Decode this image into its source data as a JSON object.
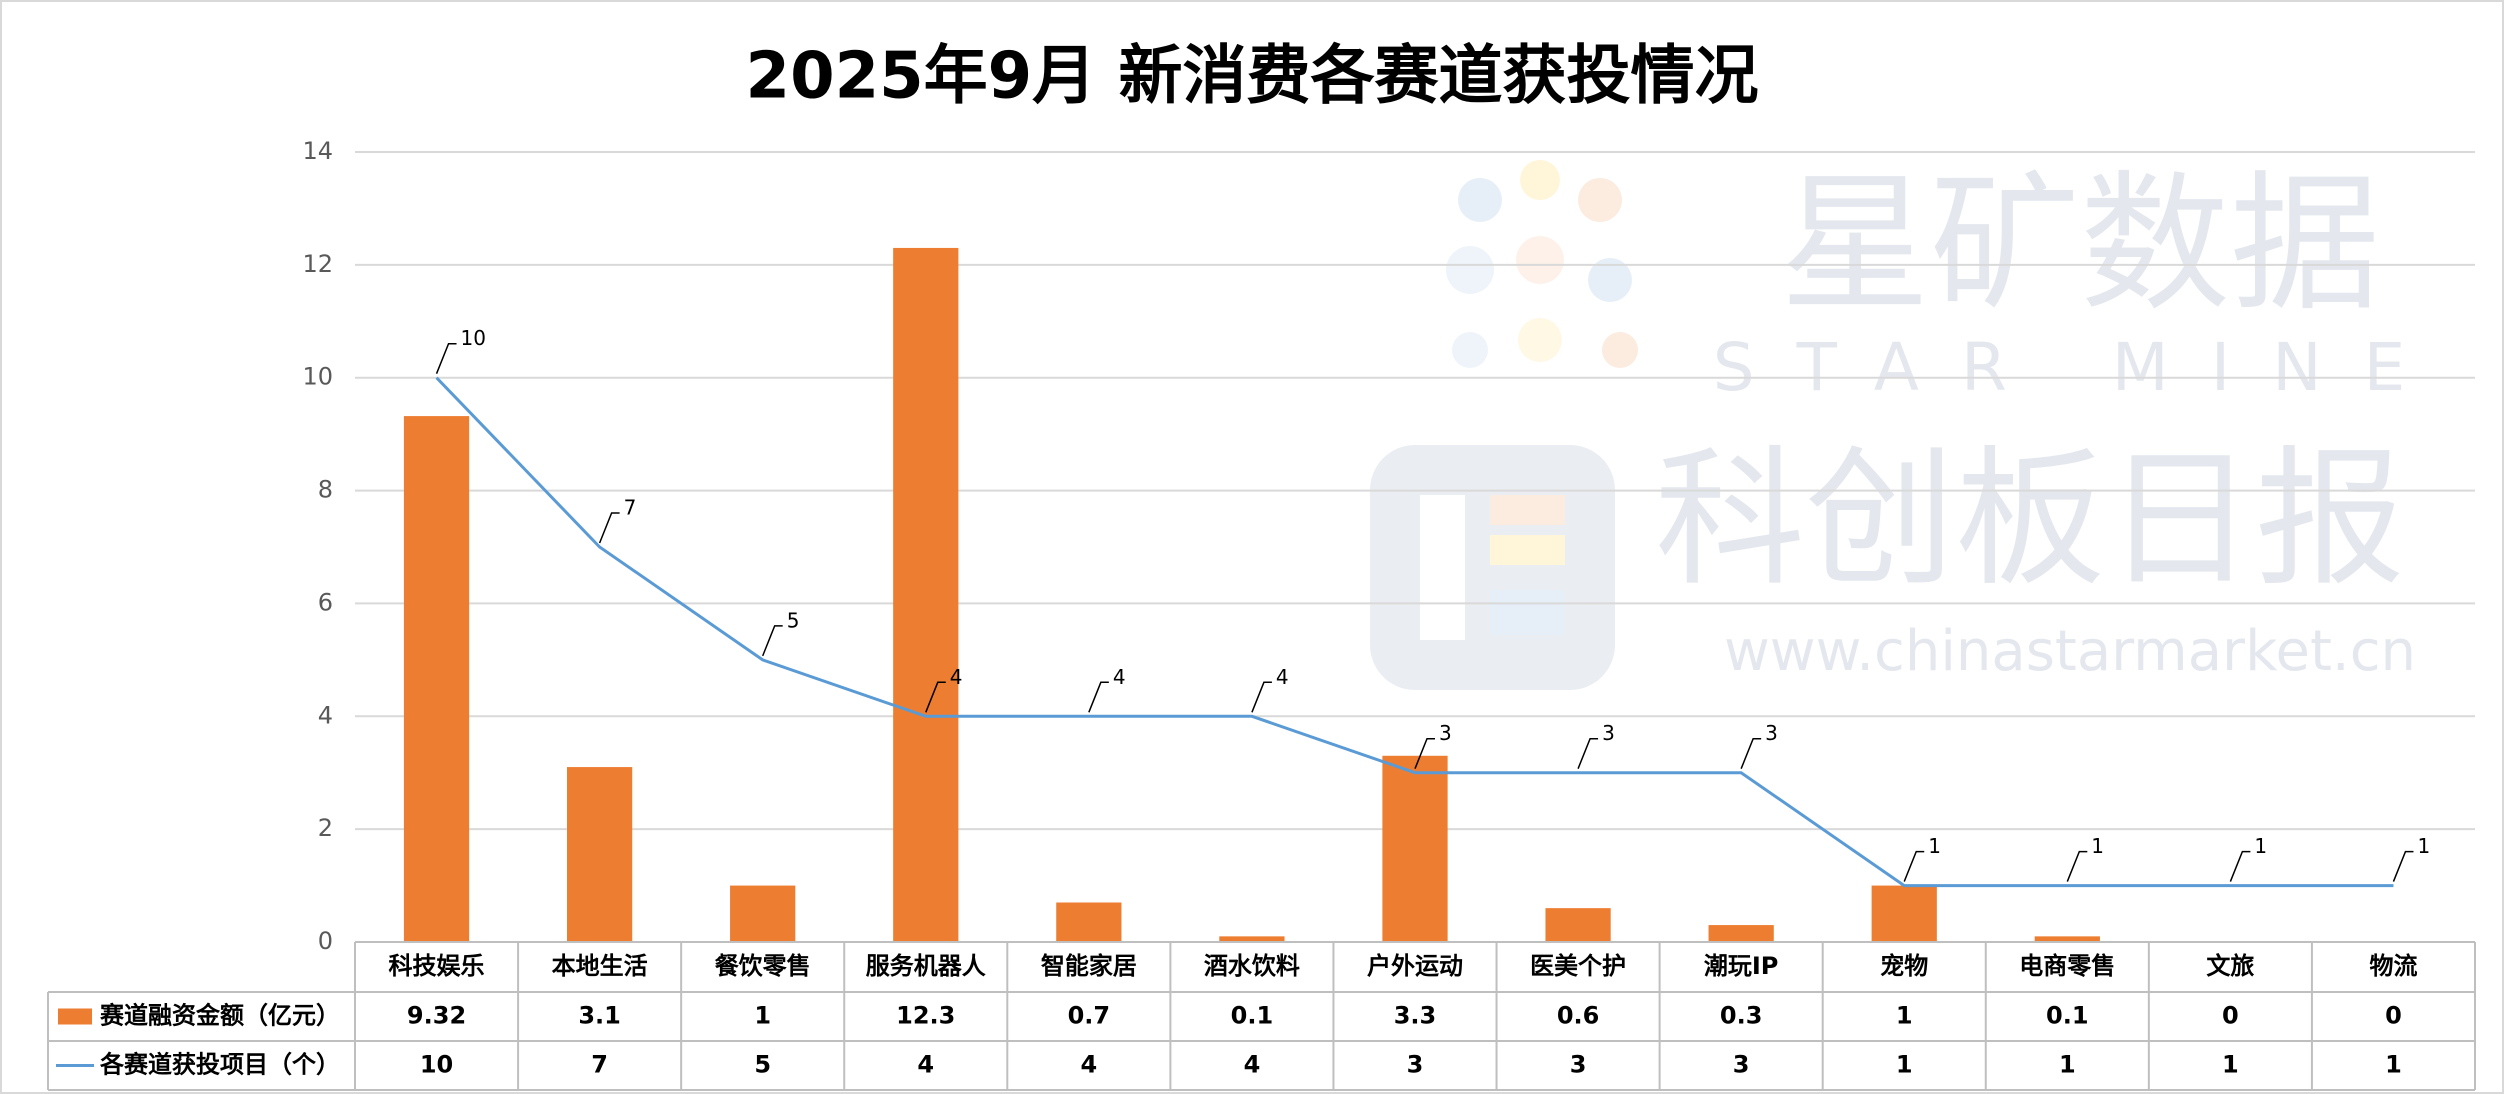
{
  "chart_data": {
    "type": "combo",
    "title": "2025年9月 新消费各赛道获投情况",
    "categories": [
      "科技娱乐",
      "本地生活",
      "餐饮零售",
      "服务机器人",
      "智能家居",
      "酒水饮料",
      "户外运动",
      "医美个护",
      "潮玩IP",
      "宠物",
      "电商零售",
      "文旅",
      "物流"
    ],
    "series": [
      {
        "name": "赛道融资金额（亿元）",
        "type": "bar",
        "color": "#ed7d31",
        "values": [
          9.32,
          3.1,
          1,
          12.3,
          0.7,
          0.1,
          3.3,
          0.6,
          0.3,
          1,
          0.1,
          0,
          0
        ]
      },
      {
        "name": "各赛道获投项目（个）",
        "type": "line",
        "color": "#5b9bd5",
        "values": [
          10,
          7,
          5,
          4,
          4,
          4,
          3,
          3,
          3,
          1,
          1,
          1,
          1
        ],
        "data_labels": true
      }
    ],
    "ylim": [
      0,
      14
    ],
    "yticks": [
      0,
      2,
      4,
      6,
      8,
      10,
      12,
      14
    ],
    "grid": true,
    "data_table": true,
    "watermark": {
      "brand": "星矿数据",
      "brand_en": "STAR MINE",
      "source": "科创板日报",
      "url": "www.chinastarmarket.cn"
    }
  }
}
